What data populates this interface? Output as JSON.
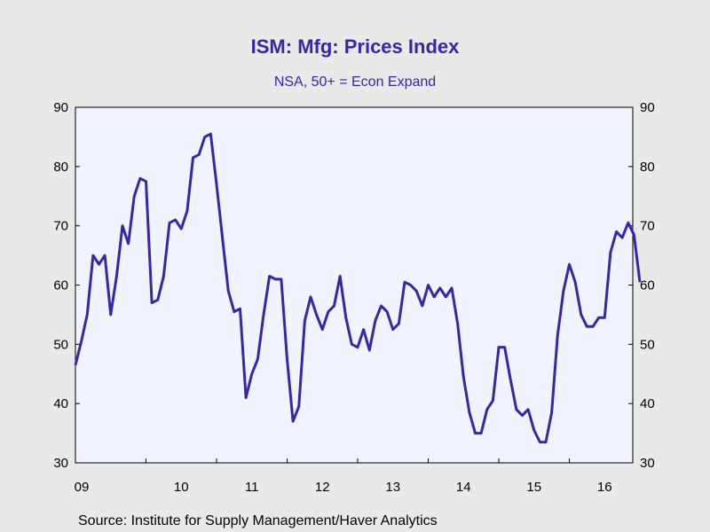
{
  "chart_data": {
    "type": "line",
    "title": "ISM: Mfg: Prices Index",
    "subtitle": "NSA, 50+ = Econ Expand",
    "source": "Source:  Institute for Supply Management/Haver Analytics",
    "x_start": "2009-01",
    "x_ticks": [
      "09",
      "10",
      "11",
      "12",
      "13",
      "14",
      "15",
      "16"
    ],
    "ylim": [
      30,
      90
    ],
    "y_ticks": [
      "30",
      "40",
      "50",
      "60",
      "70",
      "80",
      "90"
    ],
    "grid": false,
    "colors": {
      "line": "#3a24a8",
      "plot_bg": "#f0f4ff",
      "page_bg": "#e9e9e9",
      "text_accent": "#3a24a8"
    },
    "series": [
      {
        "values": [
          46.5,
          50.5,
          55.0,
          65.0,
          63.5,
          65.0,
          55.0,
          61.5,
          70.0,
          67.0,
          75.0,
          78.0,
          77.5,
          57.0,
          57.5,
          61.5,
          70.5,
          71.0,
          69.5,
          72.5,
          81.5,
          82.0,
          85.0,
          85.5,
          77.0,
          68.0,
          59.0,
          55.5,
          56.0,
          41.0,
          45.0,
          47.5,
          55.0,
          61.5,
          61.0,
          61.0,
          47.5,
          37.0,
          39.5,
          54.0,
          58.0,
          55.0,
          52.5,
          55.5,
          56.5,
          61.5,
          54.5,
          50.0,
          49.5,
          52.5,
          49.0,
          54.0,
          56.5,
          55.5,
          52.5,
          53.5,
          60.5,
          60.0,
          59.0,
          56.5,
          60.0,
          58.0,
          59.5,
          58.0,
          59.5,
          53.5,
          44.5,
          38.5,
          35.0,
          35.0,
          39.0,
          40.5,
          49.5,
          49.5,
          44.0,
          39.0,
          38.0,
          39.0,
          35.5,
          33.5,
          33.5,
          38.5,
          51.5,
          59.0,
          63.5,
          60.5,
          55.0,
          53.0,
          53.0,
          54.5,
          54.5,
          65.5,
          69.0,
          68.0,
          70.5,
          68.5,
          60.5
        ]
      }
    ]
  }
}
